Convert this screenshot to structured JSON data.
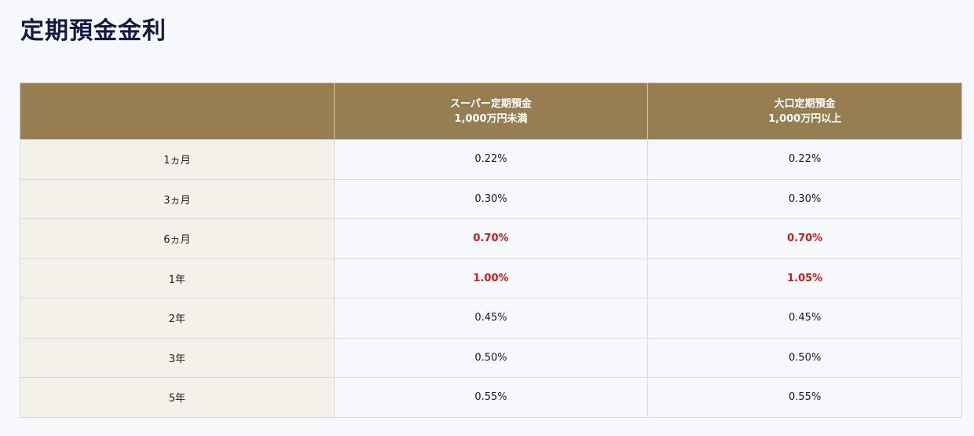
{
  "page": {
    "title": "定期預金金利"
  },
  "table": {
    "headers": [
      {
        "line1": "",
        "line2": ""
      },
      {
        "line1": "スーパー定期預金",
        "line2": "1,000万円未満"
      },
      {
        "line1": "大口定期預金",
        "line2": "1,000万円以上"
      }
    ],
    "rows": [
      {
        "term": "1ヵ月",
        "super": "0.22%",
        "large": "0.22%",
        "highlight": false
      },
      {
        "term": "3ヵ月",
        "super": "0.30%",
        "large": "0.30%",
        "highlight": false
      },
      {
        "term": "6ヵ月",
        "super": "0.70%",
        "large": "0.70%",
        "highlight": true
      },
      {
        "term": "1年",
        "super": "1.00%",
        "large": "1.05%",
        "highlight": true
      },
      {
        "term": "2年",
        "super": "0.45%",
        "large": "0.45%",
        "highlight": false
      },
      {
        "term": "3年",
        "super": "0.50%",
        "large": "0.50%",
        "highlight": false
      },
      {
        "term": "5年",
        "super": "0.55%",
        "large": "0.55%",
        "highlight": false
      }
    ]
  },
  "colors": {
    "header_bg": "#977e52",
    "term_bg": "#f4f1eb",
    "highlight": "#cc1a1a",
    "title": "#141a46"
  }
}
